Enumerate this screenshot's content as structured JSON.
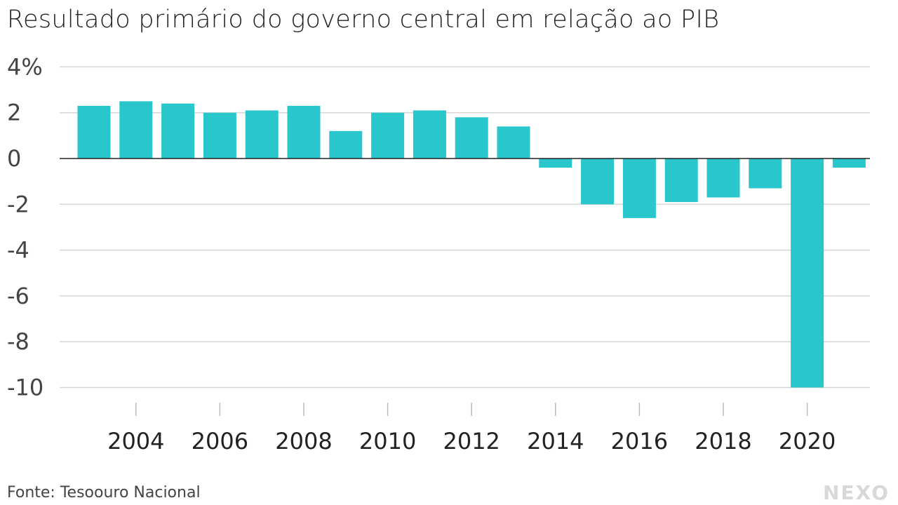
{
  "title": "Resultado primário do governo central em relação ao PIB",
  "source": "Fonte: Tesoouro Nacional",
  "logo": "NEXO",
  "chart_data": {
    "type": "bar",
    "title": "Resultado primário do governo central em relação ao PIB",
    "xlabel": "",
    "ylabel": "",
    "categories": [
      2003,
      2004,
      2005,
      2006,
      2007,
      2008,
      2009,
      2010,
      2011,
      2012,
      2013,
      2014,
      2015,
      2016,
      2017,
      2018,
      2019,
      2020,
      2021
    ],
    "values": [
      2.3,
      2.5,
      2.4,
      2.0,
      2.1,
      2.3,
      1.2,
      2.0,
      2.1,
      1.8,
      1.4,
      -0.4,
      -2.0,
      -2.6,
      -1.9,
      -1.7,
      -1.3,
      -10.0,
      -0.4
    ],
    "ylim": [
      -10,
      4
    ],
    "yticks": [
      "4%",
      "2",
      "0",
      "-2",
      "-4",
      "-6",
      "-8",
      "-10"
    ],
    "ytick_values": [
      4,
      2,
      0,
      -2,
      -4,
      -6,
      -8,
      -10
    ],
    "xticks": [
      "2004",
      "2006",
      "2008",
      "2010",
      "2012",
      "2014",
      "2016",
      "2018",
      "2020"
    ],
    "grid": true,
    "color": "#29c6cb"
  }
}
